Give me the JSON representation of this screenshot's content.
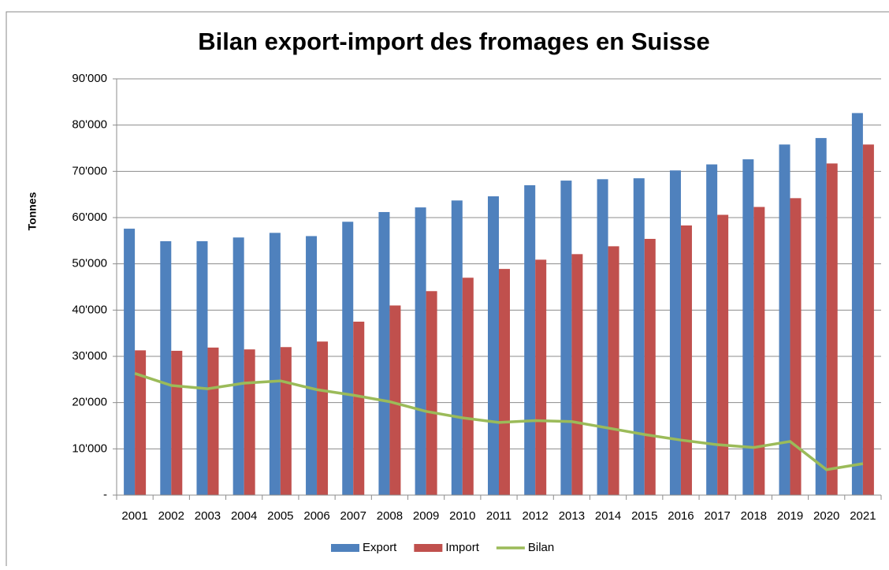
{
  "chart_data": {
    "type": "bar",
    "title": "Bilan export-import des fromages en Suisse",
    "y_label": "Tonnes",
    "categories": [
      "2001",
      "2002",
      "2003",
      "2004",
      "2005",
      "2006",
      "2007",
      "2008",
      "2009",
      "2010",
      "2011",
      "2012",
      "2013",
      "2014",
      "2015",
      "2016",
      "2017",
      "2018",
      "2019",
      "2020",
      "2021"
    ],
    "series": [
      {
        "name": "Export",
        "type": "bar",
        "color": "#4f81bd",
        "values": [
          57600,
          54900,
          54900,
          55700,
          56700,
          56000,
          59100,
          61200,
          62200,
          63700,
          64600,
          67000,
          68000,
          68300,
          68500,
          70200,
          71500,
          72600,
          75800,
          77200,
          82600
        ]
      },
      {
        "name": "Import",
        "type": "bar",
        "color": "#c0504d",
        "values": [
          31300,
          31200,
          31900,
          31500,
          32000,
          33200,
          37500,
          41000,
          44100,
          47000,
          48900,
          50900,
          52100,
          53800,
          55400,
          58300,
          60600,
          62300,
          64200,
          71700,
          75800
        ]
      },
      {
        "name": "Bilan",
        "type": "line",
        "color": "#9bbb59",
        "values": [
          26300,
          23700,
          23000,
          24200,
          24700,
          22800,
          21600,
          20200,
          18100,
          16700,
          15700,
          16100,
          15900,
          14500,
          13100,
          11900,
          10900,
          10300,
          11600,
          5500,
          6800
        ]
      }
    ],
    "ylim": [
      0,
      90000
    ],
    "yticks": [
      {
        "value": 0,
        "label": "-"
      },
      {
        "value": 10000,
        "label": "10'000"
      },
      {
        "value": 20000,
        "label": "20'000"
      },
      {
        "value": 30000,
        "label": "30'000"
      },
      {
        "value": 40000,
        "label": "40'000"
      },
      {
        "value": 50000,
        "label": "50'000"
      },
      {
        "value": 60000,
        "label": "60'000"
      },
      {
        "value": 70000,
        "label": "70'000"
      },
      {
        "value": 80000,
        "label": "80'000"
      },
      {
        "value": 90000,
        "label": "90'000"
      }
    ],
    "grid": true,
    "legend": "bottom"
  }
}
